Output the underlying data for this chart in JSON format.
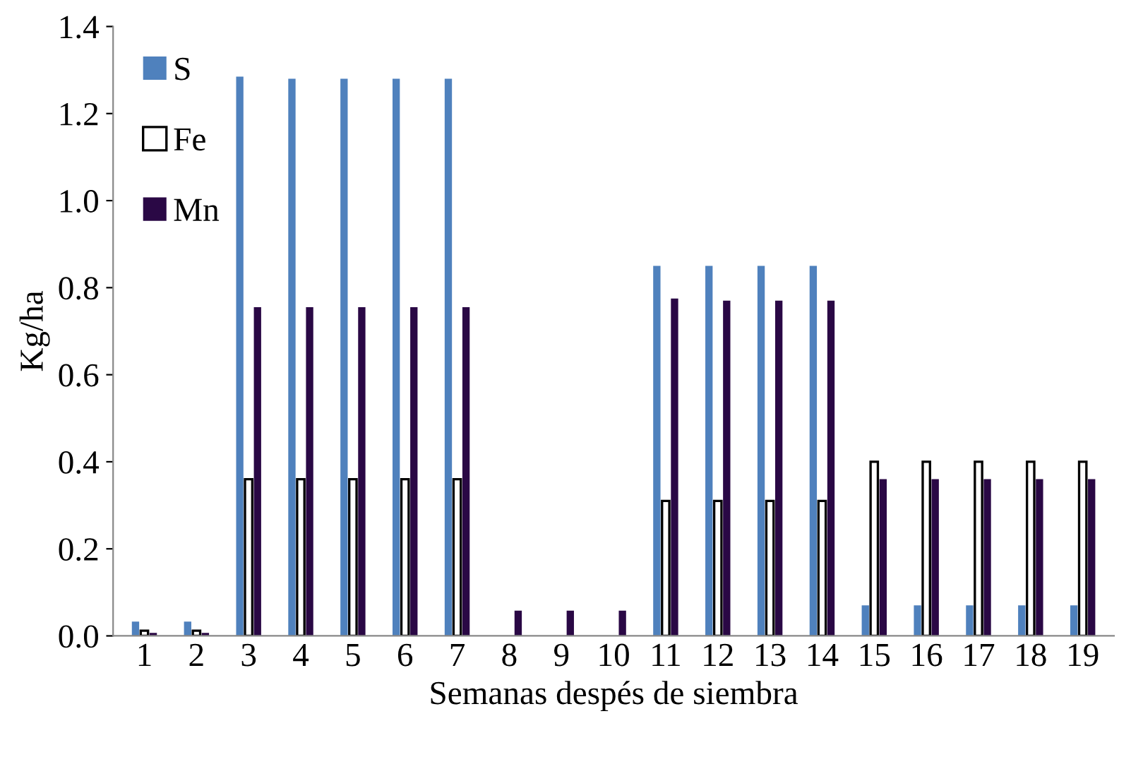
{
  "chart_data": {
    "type": "bar",
    "xlabel": "Semanas despés de siembra",
    "ylabel": "Kg/ha",
    "categories": [
      "1",
      "2",
      "3",
      "4",
      "5",
      "6",
      "7",
      "8",
      "9",
      "10",
      "11",
      "12",
      "13",
      "14",
      "15",
      "16",
      "17",
      "18",
      "19"
    ],
    "series": [
      {
        "name": "S",
        "color": "#4f81bd",
        "values": [
          0.033,
          0.033,
          1.285,
          1.28,
          1.28,
          1.28,
          1.28,
          0,
          0,
          0,
          0.85,
          0.85,
          0.85,
          0.85,
          0.07,
          0.07,
          0.07,
          0.07,
          0.07
        ]
      },
      {
        "name": "Fe",
        "color": "#ffffff",
        "values": [
          0.012,
          0.012,
          0.36,
          0.36,
          0.36,
          0.36,
          0.36,
          0,
          0,
          0,
          0.31,
          0.31,
          0.31,
          0.31,
          0.4,
          0.4,
          0.4,
          0.4,
          0.4
        ]
      },
      {
        "name": "Mn",
        "color": "#2a0845",
        "values": [
          0.007,
          0.007,
          0.755,
          0.755,
          0.755,
          0.755,
          0.755,
          0.058,
          0.058,
          0.058,
          0.775,
          0.77,
          0.77,
          0.77,
          0.36,
          0.36,
          0.36,
          0.36,
          0.36
        ]
      }
    ],
    "ylim": [
      0,
      1.4
    ],
    "yticks": [
      {
        "value": 0,
        "label": "0.0"
      },
      {
        "value": 0.2,
        "label": "0.2"
      },
      {
        "value": 0.4,
        "label": "0.4"
      },
      {
        "value": 0.6,
        "label": "0.6"
      },
      {
        "value": 0.8,
        "label": "0.8"
      },
      {
        "value": 1.0,
        "label": "1.0"
      },
      {
        "value": 1.2,
        "label": "1.2"
      },
      {
        "value": 1.4,
        "label": "1.4"
      }
    ],
    "grid": false,
    "legend": "top left"
  }
}
